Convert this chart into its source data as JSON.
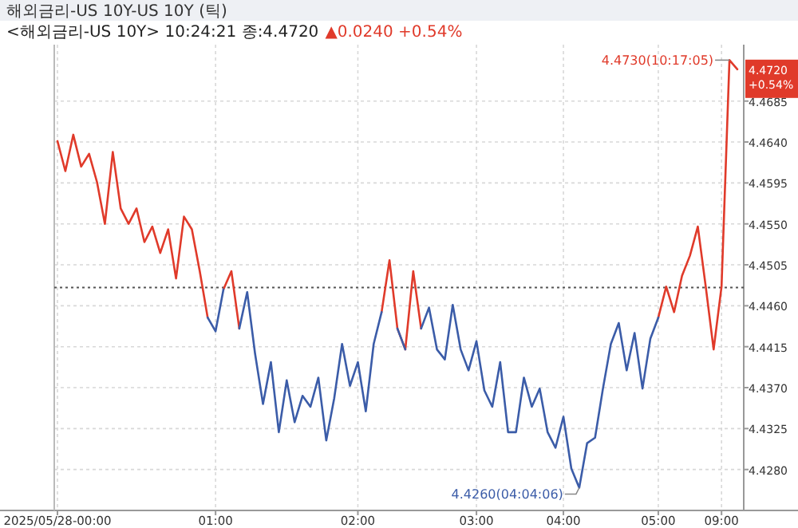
{
  "chart_data": {
    "type": "line",
    "title": "해외금리-US   10Y-US 10Y (틱)",
    "subtitle": "<해외금리-US 10Y> 10:24:21 종:4.4720",
    "categories": [
      "2025/05/28-00:00",
      null,
      null,
      null,
      null,
      null,
      null,
      null,
      null,
      null,
      null,
      null,
      null,
      null,
      null,
      null,
      null,
      null,
      null,
      null,
      "01:00",
      null,
      null,
      null,
      null,
      null,
      null,
      null,
      null,
      null,
      null,
      null,
      null,
      null,
      null,
      null,
      null,
      null,
      "02:00",
      null,
      null,
      null,
      null,
      null,
      null,
      null,
      null,
      null,
      null,
      null,
      null,
      null,
      null,
      "03:00",
      null,
      null,
      null,
      null,
      null,
      null,
      null,
      null,
      null,
      null,
      "04:00",
      null,
      null,
      null,
      null,
      null,
      null,
      null,
      null,
      null,
      null,
      null,
      "05:00",
      null,
      null,
      null,
      null,
      null,
      null,
      null,
      "09:00",
      null,
      null
    ],
    "series": [
      {
        "color": "#e03a2a",
        "values": [
          4.4641,
          4.4608,
          4.4648,
          4.4613,
          4.4627,
          4.4596,
          4.455,
          4.4629,
          4.4567,
          4.455,
          4.4567,
          4.453,
          4.4547,
          4.4518,
          4.4544,
          4.449,
          4.4558,
          4.4544,
          4.4498,
          4.4447,
          null,
          4.4478,
          4.4498,
          4.4435,
          null,
          null,
          null,
          null,
          null,
          null,
          null,
          null,
          null,
          null,
          null,
          null,
          null,
          null,
          null,
          null,
          null,
          4.4453,
          4.451,
          4.4435,
          4.4412,
          4.4498,
          4.4435,
          null,
          null,
          null,
          null,
          null,
          null,
          null,
          null,
          null,
          null,
          null,
          null,
          null,
          null,
          null,
          null,
          null,
          null,
          null,
          null,
          null,
          null,
          null,
          null,
          null,
          null,
          null,
          null,
          null,
          4.4447,
          4.4481,
          4.4453,
          4.4493,
          4.4515,
          4.4547,
          4.4481,
          4.4412,
          4.4481,
          4.473,
          4.472
        ]
      },
      {
        "color": "#3b5ca8",
        "values": [
          null,
          null,
          null,
          null,
          null,
          null,
          null,
          null,
          null,
          null,
          null,
          null,
          null,
          null,
          null,
          null,
          null,
          null,
          null,
          4.4447,
          4.4432,
          4.4478,
          null,
          4.4435,
          4.4475,
          4.4407,
          4.4352,
          4.4398,
          4.4321,
          4.4378,
          4.4332,
          4.4361,
          4.4349,
          4.4381,
          4.4312,
          4.4358,
          4.4418,
          4.4372,
          4.4398,
          4.4344,
          4.4418,
          4.4453,
          null,
          4.4435,
          4.4412,
          null,
          4.4435,
          4.4458,
          4.4412,
          4.4401,
          4.4461,
          4.4412,
          4.4389,
          4.4421,
          4.4367,
          4.4349,
          4.4398,
          4.4321,
          4.4321,
          4.4381,
          4.4349,
          4.4369,
          4.4321,
          4.4304,
          4.4338,
          4.4281,
          4.426,
          4.4309,
          4.4315,
          4.4369,
          4.4418,
          4.4441,
          4.4389,
          4.443,
          4.4369,
          4.4424,
          4.4447,
          null,
          null,
          null,
          null,
          null,
          null,
          null,
          null,
          null,
          null
        ]
      }
    ],
    "ylim": [
      4.4235,
      4.4747
    ],
    "yticks": [
      {
        "value": 4.428,
        "label": "4.4280"
      },
      {
        "value": 4.4325,
        "label": "4.4325"
      },
      {
        "value": 4.437,
        "label": "4.4370"
      },
      {
        "value": 4.4415,
        "label": "4.4415"
      },
      {
        "value": 4.446,
        "label": "4.4460"
      },
      {
        "value": 4.4505,
        "label": "4.4505"
      },
      {
        "value": 4.455,
        "label": "4.4550"
      },
      {
        "value": 4.4595,
        "label": "4.4595"
      },
      {
        "value": 4.464,
        "label": "4.4640"
      },
      {
        "value": 4.4685,
        "label": "4.4685"
      }
    ],
    "ref_lines": [
      {
        "axis": "y",
        "value": 4.448,
        "color": "#555555",
        "line_style": "dotted"
      }
    ],
    "annotations": [
      "▲0.0240 +0.54%",
      "4.4730(10:17:05)",
      "4.4260(04:04:06)",
      "4.4720 +0.54%"
    ],
    "grid": true,
    "line_style": "solid"
  }
}
